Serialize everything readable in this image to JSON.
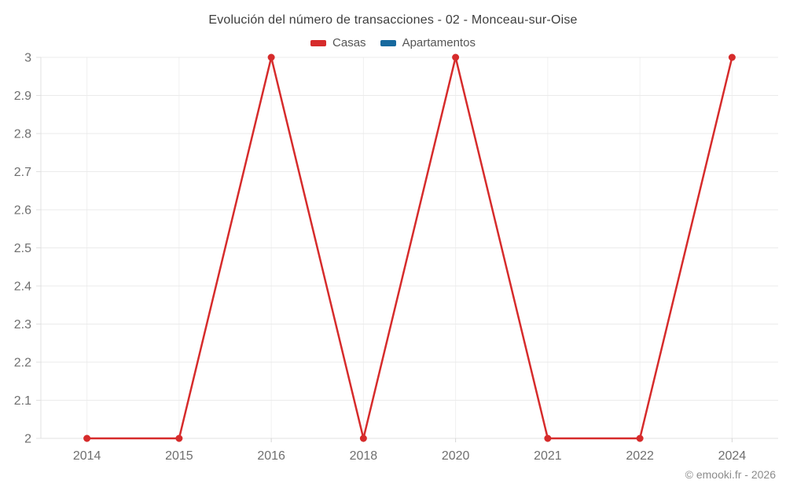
{
  "title": "Evolución del número de transacciones - 02 - Monceau-sur-Oise",
  "legend": {
    "items": [
      {
        "label": "Casas",
        "color": "#d62b2b"
      },
      {
        "label": "Apartamentos",
        "color": "#17699e"
      }
    ]
  },
  "footer": {
    "credit": "© emooki.fr - 2026"
  },
  "chart_data": {
    "type": "line",
    "title": "Evolución del número de transacciones - 02 - Monceau-sur-Oise",
    "categories": [
      "2014",
      "2015",
      "2016",
      "2018",
      "2020",
      "2021",
      "2022",
      "2024"
    ],
    "series": [
      {
        "name": "Casas",
        "color": "#d62b2b",
        "values": [
          2,
          2,
          3,
          2,
          3,
          2,
          2,
          3
        ]
      },
      {
        "name": "Apartamentos",
        "color": "#17699e",
        "values": []
      }
    ],
    "xlabel": "",
    "ylabel": "",
    "ylim": [
      2,
      3
    ],
    "ytick_step": 0.1,
    "ytick_labels": [
      "2",
      "2.1",
      "2.2",
      "2.3",
      "2.4",
      "2.5",
      "2.6",
      "2.7",
      "2.8",
      "2.9",
      "3"
    ],
    "grid": true,
    "legend_position": "top",
    "colors": {
      "h_gridline": "#ebebeb",
      "v_gridline": "#f0f0f0",
      "axis_line": "#e0e0e0",
      "tick": "#d4d4d4",
      "axis_label": "#6f6f6f"
    }
  }
}
